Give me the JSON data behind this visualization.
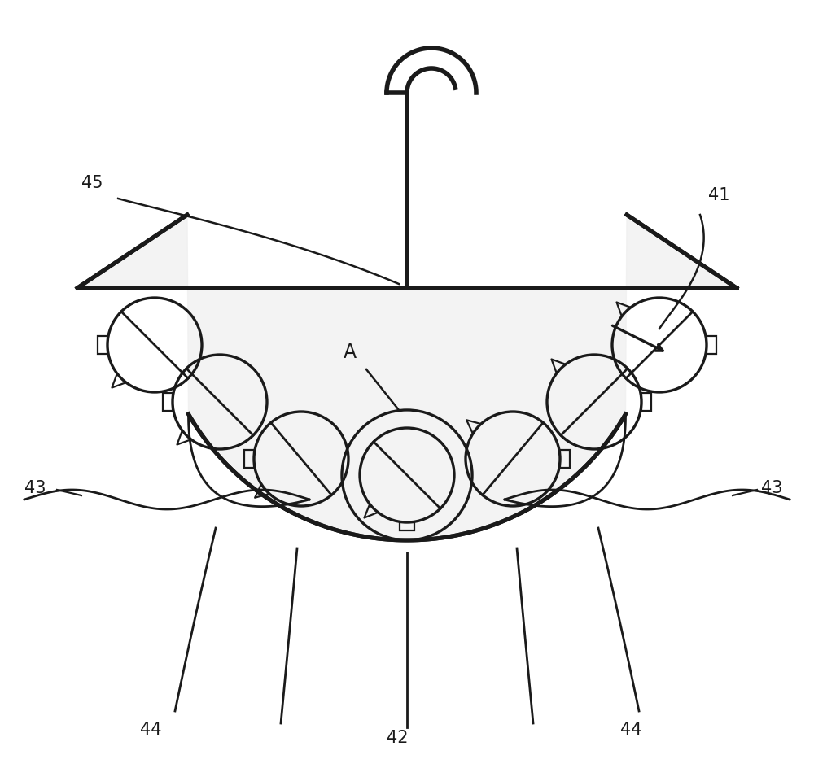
{
  "bg_color": "#ffffff",
  "line_color": "#1a1a1a",
  "line_width": 2.0,
  "figure_size": [
    10.0,
    9.45
  ],
  "dpi": 100,
  "font_size": 15
}
